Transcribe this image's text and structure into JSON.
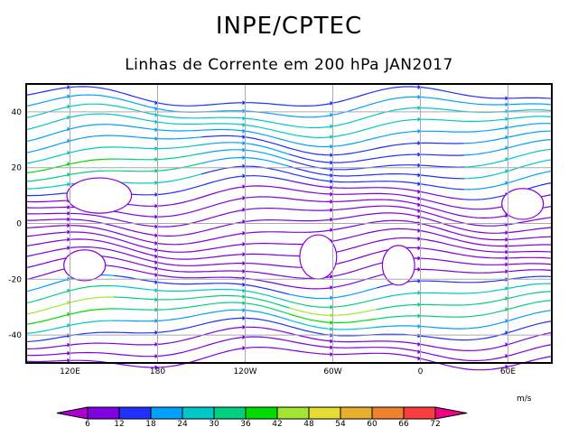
{
  "chart_data": {
    "type": "streamline-map",
    "title": "INPE/CPTEC",
    "subtitle": "Linhas de Corrente em 200 hPa JAN2017",
    "lon_range": [
      90,
      450
    ],
    "lat_range": [
      -50,
      50
    ],
    "x_ticks": [
      {
        "lon": 120,
        "label": "120E"
      },
      {
        "lon": 180,
        "label": "180"
      },
      {
        "lon": 240,
        "label": "120W"
      },
      {
        "lon": 300,
        "label": "60W"
      },
      {
        "lon": 360,
        "label": "0"
      },
      {
        "lon": 420,
        "label": "60E"
      }
    ],
    "y_ticks": [
      {
        "lat": 40,
        "label": "40"
      },
      {
        "lat": 20,
        "label": "20"
      },
      {
        "lat": 0,
        "label": "0"
      },
      {
        "lat": -20,
        "label": "-20"
      },
      {
        "lat": -40,
        "label": "-40"
      }
    ],
    "grid": true,
    "colorbar": {
      "units": "m/s",
      "levels": [
        "6",
        "12",
        "18",
        "24",
        "30",
        "36",
        "42",
        "48",
        "54",
        "60",
        "66",
        "72"
      ],
      "colors": [
        "#b000d0",
        "#8000e0",
        "#2030ff",
        "#00a0ff",
        "#00c8c8",
        "#00d080",
        "#00dc00",
        "#a0e632",
        "#e6dc32",
        "#e6af2d",
        "#f0822d",
        "#fa3c3c",
        "#f00082"
      ]
    }
  }
}
